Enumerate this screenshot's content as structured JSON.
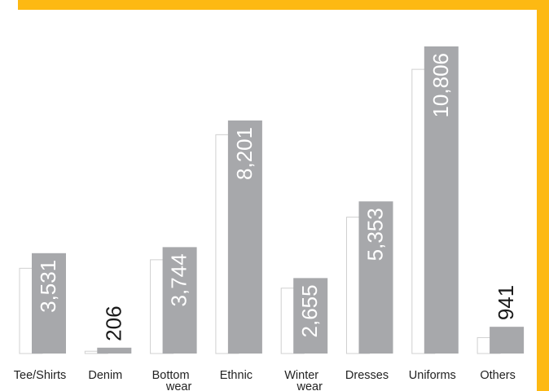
{
  "colors": {
    "frame": "#FDB913",
    "bar": "#A7A8AB",
    "ghost_outline": "#D0D0D0",
    "label_inside": "#FFFFFF",
    "label_outside": "#1A1A1A",
    "category_text": "#222222"
  },
  "chart_data": {
    "type": "bar",
    "title": "",
    "xlabel": "",
    "ylabel": "",
    "categories": [
      [
        "Tee/Shirts"
      ],
      [
        "Denim"
      ],
      [
        "Bottom",
        "wear"
      ],
      [
        "Ethnic"
      ],
      [
        "Winter",
        "wear"
      ],
      [
        "Dresses"
      ],
      [
        "Uniforms"
      ],
      [
        "Others"
      ]
    ],
    "series": [
      {
        "values": [
          3531,
          206,
          3744,
          8201,
          2655,
          5353,
          10806,
          941
        ]
      }
    ],
    "value_labels": [
      "3,531",
      "206",
      "3,744",
      "8,201",
      "2,655",
      "5,353",
      "10,806",
      "941"
    ],
    "background_outline_values": [
      3000,
      80,
      3300,
      7700,
      2300,
      4800,
      10000,
      560
    ],
    "ylim": [
      0,
      10806
    ],
    "grid": false,
    "legend": "none"
  }
}
